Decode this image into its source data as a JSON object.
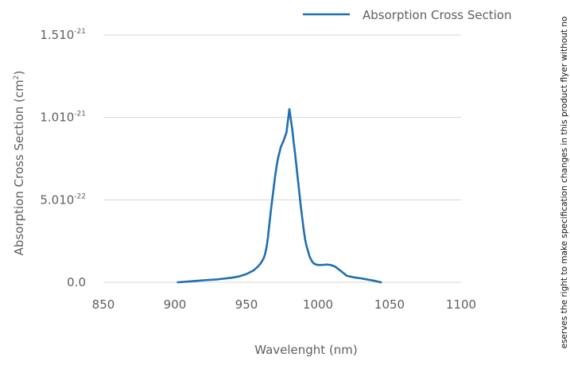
{
  "chart_data": {
    "type": "line",
    "xlabel": "Wavelenght (nm)",
    "ylabel": "Absorption Cross Section (cm",
    "ylabel_sup": "2",
    "ylabel_end": ")",
    "xlim": [
      850,
      1100
    ],
    "ylim": [
      0,
      1.5e-21
    ],
    "x_ticks": [
      850,
      900,
      950,
      1000,
      1050,
      1100
    ],
    "x_tick_labels": [
      "850",
      "900",
      "950",
      "1000",
      "1050",
      "1100"
    ],
    "y_ticks": [
      {
        "value": 0,
        "base": "0.0",
        "exp": ""
      },
      {
        "value": 5e-22,
        "base": "5.010",
        "exp": "-22"
      },
      {
        "value": 1e-21,
        "base": "1.010",
        "exp": "-21"
      },
      {
        "value": 1.5e-21,
        "base": "1.510",
        "exp": "-21"
      }
    ],
    "grid": true,
    "legend": {
      "position": "top-right"
    },
    "series": [
      {
        "name": "Absorption Cross Section",
        "color": "#1f6fb2",
        "x": [
          902,
          910,
          920,
          930,
          940,
          945,
          950,
          955,
          958,
          960,
          962,
          963,
          964,
          965,
          966,
          967,
          968,
          969,
          970,
          971,
          972,
          974,
          976,
          978,
          979,
          980,
          981,
          982,
          983,
          984,
          985,
          986,
          987,
          988,
          989,
          990,
          991,
          992,
          993,
          994,
          995,
          996,
          997,
          998,
          1000,
          1003,
          1006,
          1009,
          1012,
          1015,
          1018,
          1020,
          1025,
          1030,
          1035,
          1040,
          1044
        ],
        "y": [
          0,
          5e-24,
          1.2e-23,
          1.8e-23,
          2.8e-23,
          3.6e-23,
          5e-23,
          7.2e-23,
          9.5e-23,
          1.15e-22,
          1.45e-22,
          1.7e-22,
          2.1e-22,
          2.7e-22,
          3.5e-22,
          4.3e-22,
          5e-22,
          5.7e-22,
          6.4e-22,
          7e-22,
          7.5e-22,
          8.2e-22,
          8.6e-22,
          9.1e-22,
          9.8e-22,
          1.05e-21,
          9.9e-22,
          9.3e-22,
          8.5e-22,
          7.8e-22,
          7e-22,
          6.2e-22,
          5.4e-22,
          4.6e-22,
          3.9e-22,
          3.2e-22,
          2.6e-22,
          2.2e-22,
          1.9e-22,
          1.6e-22,
          1.4e-22,
          1.25e-22,
          1.15e-22,
          1.1e-22,
          1.05e-22,
          1.05e-22,
          1.08e-22,
          1.05e-22,
          9.5e-23,
          7.5e-23,
          5.5e-23,
          4e-23,
          3e-23,
          2.4e-23,
          1.6e-23,
          8e-24,
          0
        ]
      }
    ]
  },
  "side_note": "eserves the right to make specification changes in this product flyer without no"
}
